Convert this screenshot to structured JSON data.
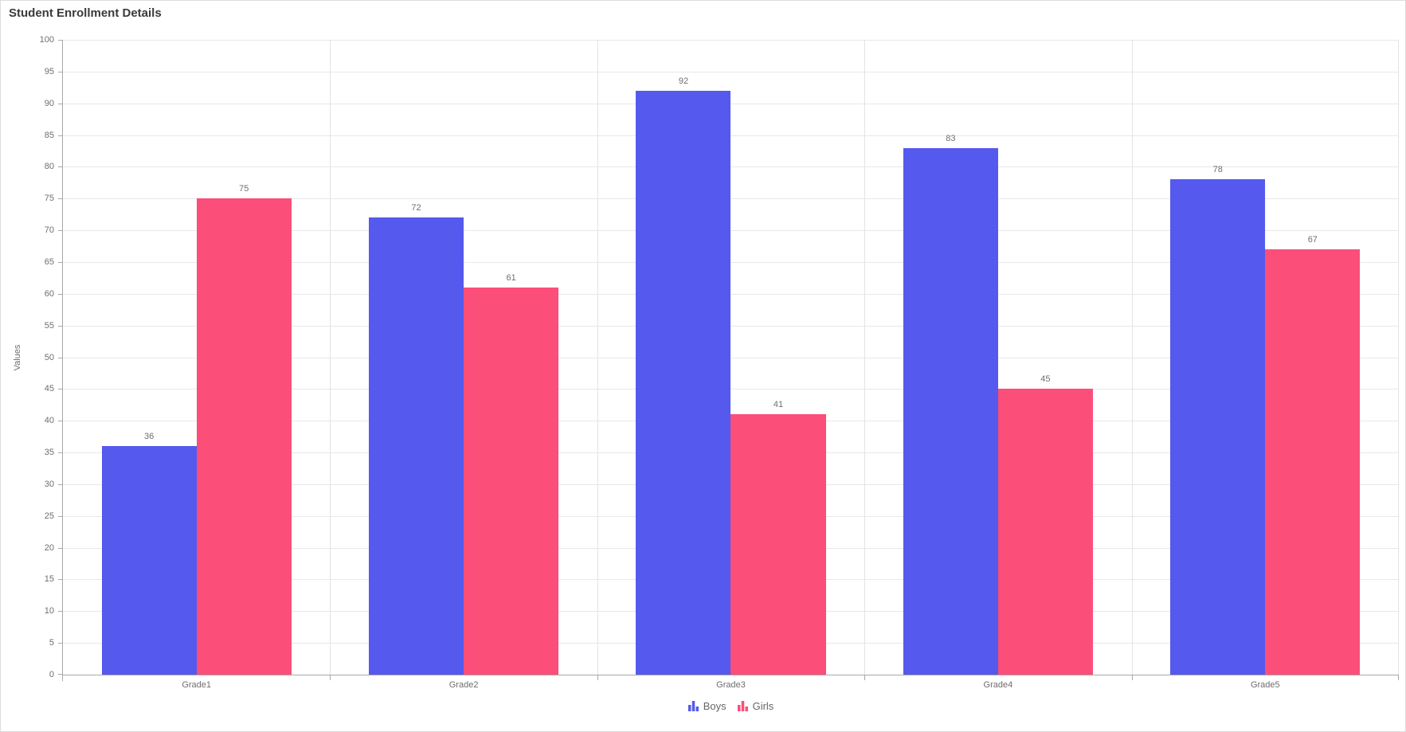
{
  "chart_data": {
    "type": "bar",
    "title": "Student Enrollment Details",
    "categories": [
      "Grade1",
      "Grade2",
      "Grade3",
      "Grade4",
      "Grade5"
    ],
    "series": [
      {
        "name": "Boys",
        "color": "#5559ED",
        "values": [
          36,
          72,
          92,
          83,
          78
        ]
      },
      {
        "name": "Girls",
        "color": "#FB4E79",
        "values": [
          75,
          61,
          41,
          45,
          67
        ]
      }
    ],
    "xlabel": "",
    "ylabel": "Values",
    "ylim": [
      0,
      100
    ],
    "y_interval": 5,
    "y_ticks": [
      0,
      5,
      10,
      15,
      20,
      25,
      30,
      35,
      40,
      45,
      50,
      55,
      60,
      65,
      70,
      75,
      80,
      85,
      90,
      95,
      100
    ],
    "grid": true,
    "data_labels": true,
    "legend_position": "bottom-center",
    "legend_icon": "column-chart-icon"
  },
  "style": {
    "axis_line_color": "#a8a8a8",
    "gridline_color": "#e8e8e8",
    "label_color": "#6e6e6e",
    "title_color": "#3a3a3a",
    "legend_text_color": "#666666",
    "background": "#ffffff"
  }
}
